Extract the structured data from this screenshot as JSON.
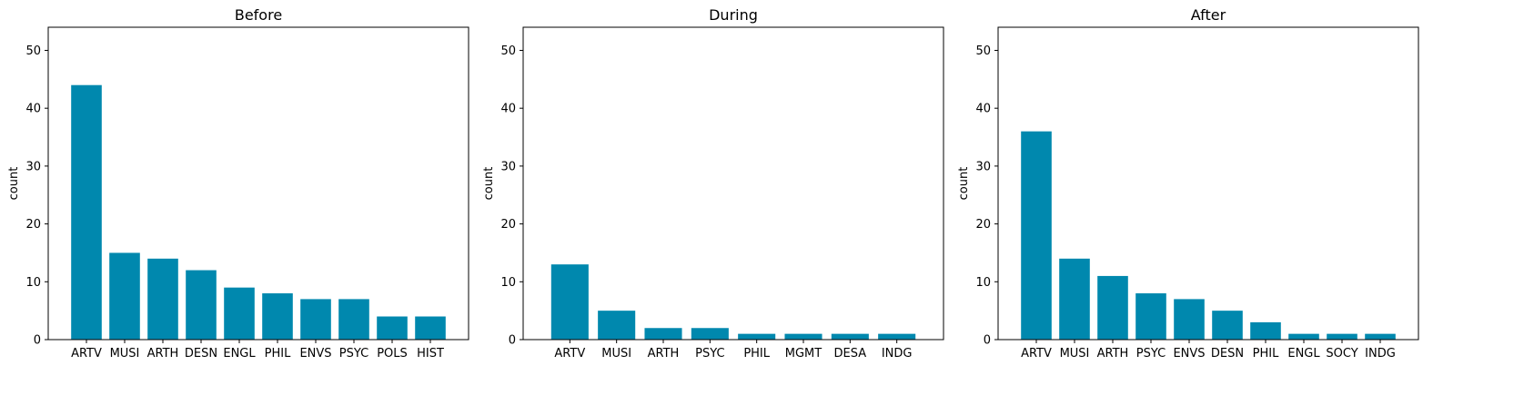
{
  "chart_data": [
    {
      "type": "bar",
      "title": "Before",
      "ylabel": "count",
      "xlabel": "",
      "ylim": [
        0,
        54
      ],
      "yticks": [
        0,
        10,
        20,
        30,
        40,
        50
      ],
      "bar_color": "#0088AE",
      "categories": [
        "ARTV",
        "MUSI",
        "ARTH",
        "DESN",
        "ENGL",
        "PHIL",
        "ENVS",
        "PSYC",
        "POLS",
        "HIST"
      ],
      "values": [
        44,
        15,
        14,
        12,
        9,
        8,
        7,
        7,
        4,
        4
      ]
    },
    {
      "type": "bar",
      "title": "During",
      "ylabel": "count",
      "xlabel": "",
      "ylim": [
        0,
        54
      ],
      "yticks": [
        0,
        10,
        20,
        30,
        40,
        50
      ],
      "bar_color": "#0088AE",
      "categories": [
        "ARTV",
        "MUSI",
        "ARTH",
        "PSYC",
        "PHIL",
        "MGMT",
        "DESA",
        "INDG"
      ],
      "values": [
        13,
        5,
        2,
        2,
        1,
        1,
        1,
        1
      ]
    },
    {
      "type": "bar",
      "title": "After",
      "ylabel": "count",
      "xlabel": "",
      "ylim": [
        0,
        54
      ],
      "yticks": [
        0,
        10,
        20,
        30,
        40,
        50
      ],
      "bar_color": "#0088AE",
      "categories": [
        "ARTV",
        "MUSI",
        "ARTH",
        "PSYC",
        "ENVS",
        "DESN",
        "PHIL",
        "ENGL",
        "SOCY",
        "INDG"
      ],
      "values": [
        36,
        14,
        11,
        8,
        7,
        5,
        3,
        1,
        1,
        1
      ]
    }
  ]
}
